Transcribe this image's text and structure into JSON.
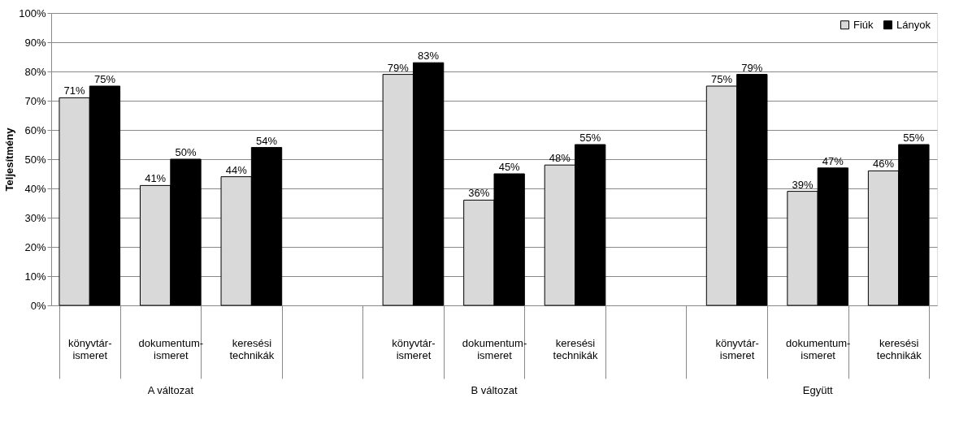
{
  "chart_data": {
    "type": "bar",
    "ylabel": "Teljesítmény",
    "categories": [
      "könyvtár-\nismeret",
      "dokumentum-\nismeret",
      "keresési\ntechnikák",
      null,
      "könyvtár-\nismeret",
      "dokumentum-\nismeret",
      "keresési\ntechnikák",
      null,
      "könyvtár-\nismeret",
      "dokumentum-\nismeret",
      "keresési\ntechnikák"
    ],
    "series": [
      {
        "name": "Fiúk",
        "color": "#d9d9d9",
        "values": [
          71,
          41,
          44,
          null,
          79,
          36,
          48,
          null,
          75,
          39,
          46
        ],
        "value_labels": [
          "71%",
          "41%",
          "44%",
          null,
          "79%",
          "36%",
          "48%",
          null,
          "75%",
          "39%",
          "46%"
        ]
      },
      {
        "name": "Lányok",
        "color": "#000000",
        "values": [
          75,
          50,
          54,
          null,
          83,
          45,
          55,
          null,
          79,
          47,
          55
        ],
        "value_labels": [
          "75%",
          "50%",
          "54%",
          null,
          "83%",
          "45%",
          "55%",
          null,
          "79%",
          "47%",
          "55%"
        ]
      }
    ],
    "ylim": [
      0,
      100
    ],
    "yticks": [
      {
        "value": 0,
        "label": "0%"
      },
      {
        "value": 10,
        "label": "10%"
      },
      {
        "value": 20,
        "label": "20%"
      },
      {
        "value": 30,
        "label": "30%"
      },
      {
        "value": 40,
        "label": "40%"
      },
      {
        "value": 50,
        "label": "50%"
      },
      {
        "value": 60,
        "label": "60%"
      },
      {
        "value": 70,
        "label": "70%"
      },
      {
        "value": 80,
        "label": "80%"
      },
      {
        "value": 90,
        "label": "90%"
      },
      {
        "value": 100,
        "label": "100%"
      }
    ],
    "grid": "y",
    "legend": "top right",
    "annotations": [
      "A változat",
      "B változat",
      "Együtt"
    ]
  }
}
